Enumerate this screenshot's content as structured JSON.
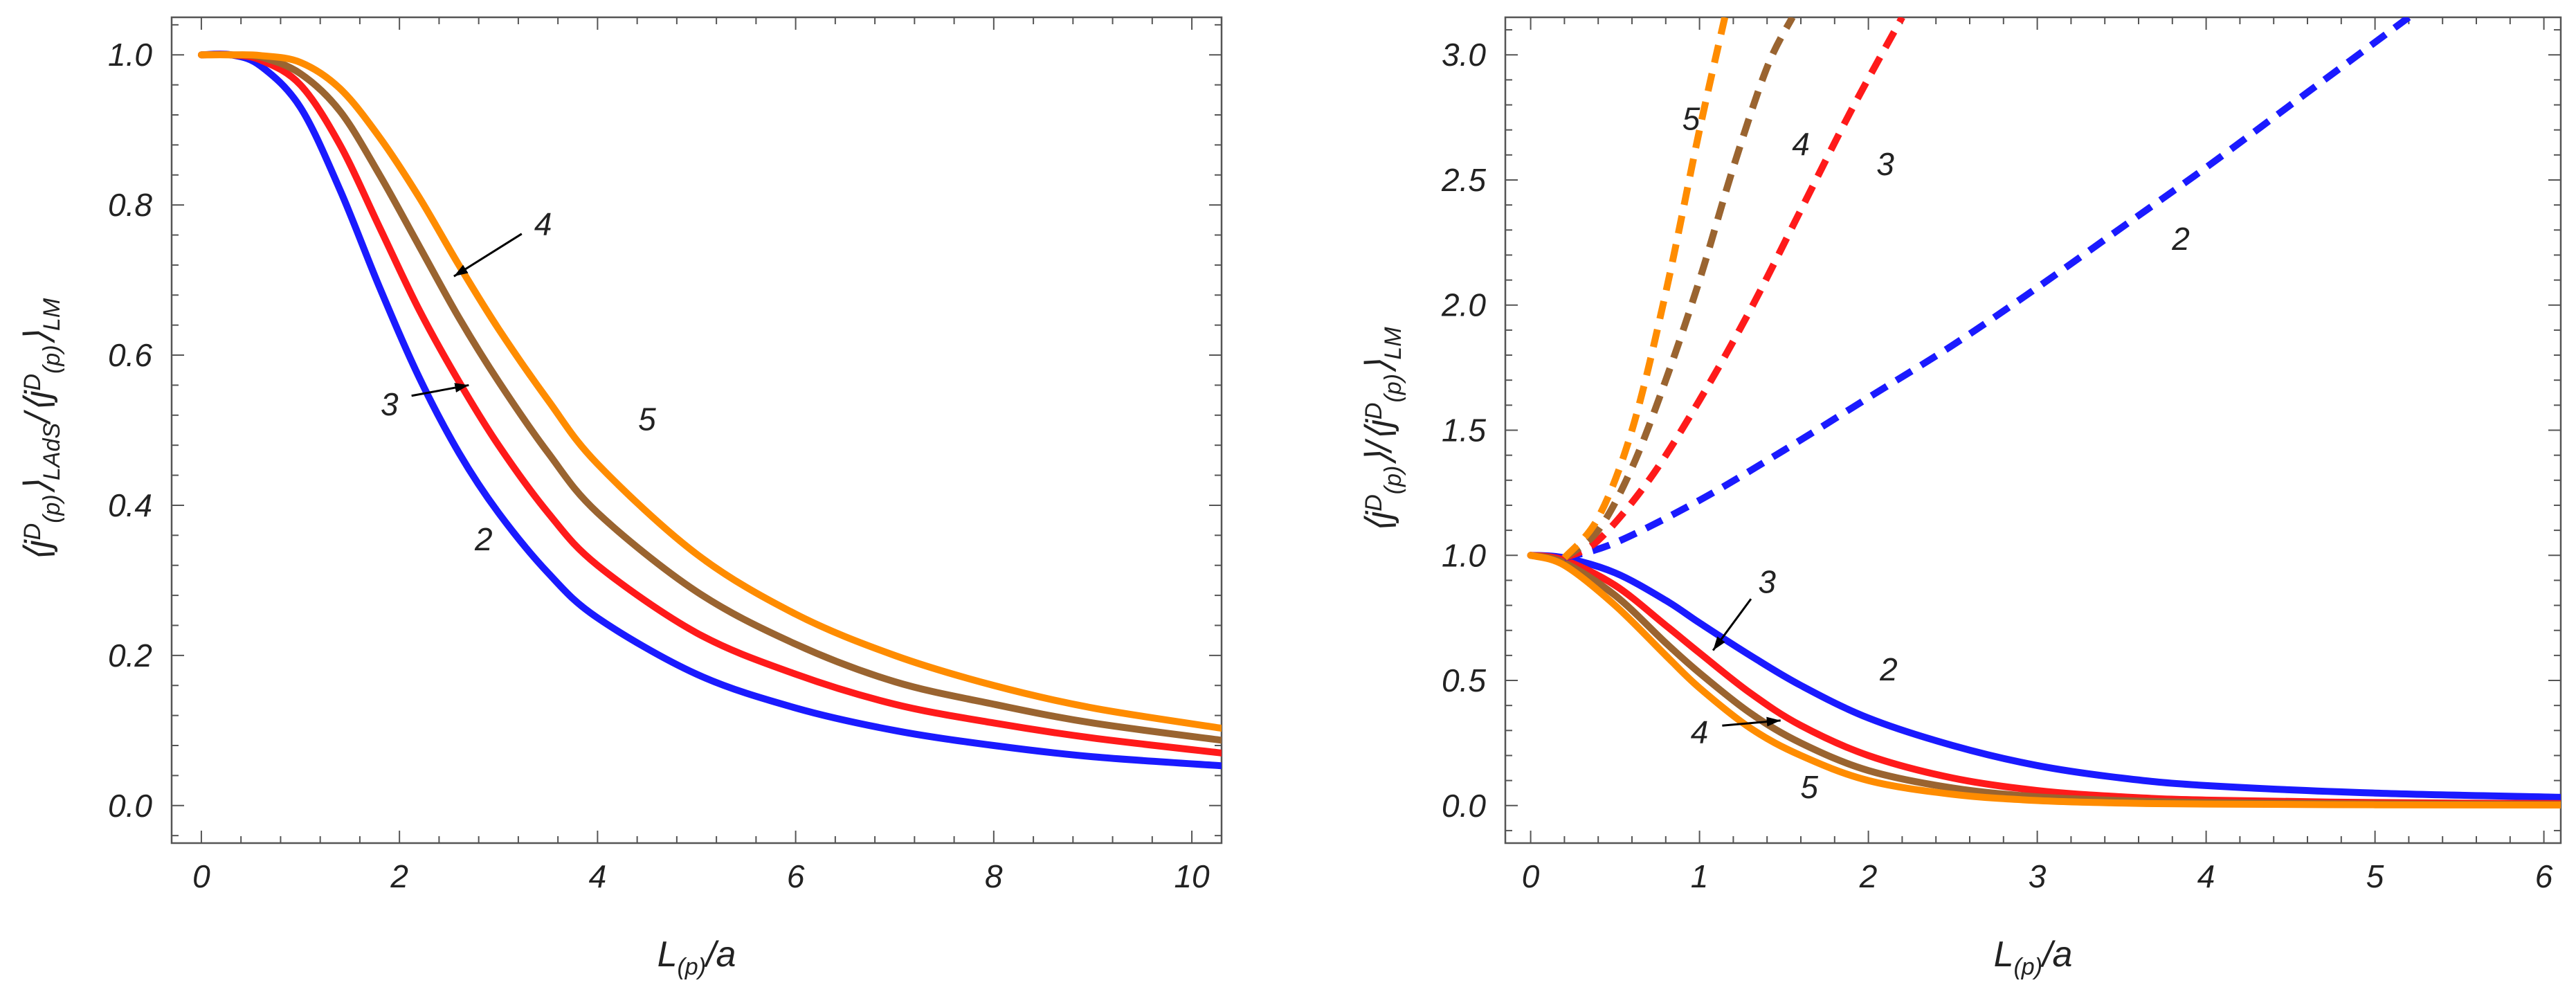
{
  "colors": {
    "n2": "#1a1aff",
    "n3": "#ff1a1a",
    "n4": "#9a6430",
    "n5": "#ff8c00",
    "frame": "#555555"
  },
  "chart_data": [
    {
      "type": "line",
      "title": "",
      "xlabel": "L_(p)/a",
      "ylabel": "⟨j^D_(p)⟩_LAdS/⟨j^D_(p)⟩_LM",
      "xlim": [
        -0.3,
        10.3
      ],
      "ylim": [
        -0.05,
        1.05
      ],
      "xticks": [
        0,
        2,
        4,
        6,
        8,
        10
      ],
      "xtick_labels": [
        "0",
        "2",
        "4",
        "6",
        "8",
        "10"
      ],
      "yticks": [
        0.0,
        0.2,
        0.4,
        0.6,
        0.8,
        1.0
      ],
      "ytick_labels": [
        "0.0",
        "0.2",
        "0.4",
        "0.6",
        "0.8",
        "1.0"
      ],
      "series": [
        {
          "name": "2",
          "color_key": "n2",
          "dashed": false,
          "x": [
            0,
            0.3,
            0.6,
            1.0,
            1.4,
            1.8,
            2.2,
            2.6,
            3.0,
            3.5,
            4.0,
            5.0,
            6.0,
            7.0,
            8.0,
            9.0,
            10.3
          ],
          "y": [
            1.0,
            1.0,
            0.985,
            0.93,
            0.82,
            0.69,
            0.57,
            0.47,
            0.39,
            0.31,
            0.25,
            0.175,
            0.13,
            0.1,
            0.08,
            0.065,
            0.053
          ]
        },
        {
          "name": "3",
          "color_key": "n3",
          "dashed": false,
          "x": [
            0,
            0.3,
            0.6,
            1.0,
            1.4,
            1.8,
            2.2,
            2.6,
            3.0,
            3.5,
            4.0,
            5.0,
            6.0,
            7.0,
            8.0,
            9.0,
            10.3
          ],
          "y": [
            1.0,
            1.0,
            0.993,
            0.96,
            0.88,
            0.77,
            0.66,
            0.565,
            0.48,
            0.39,
            0.32,
            0.23,
            0.175,
            0.135,
            0.11,
            0.09,
            0.07
          ]
        },
        {
          "name": "4",
          "color_key": "n4",
          "dashed": false,
          "x": [
            0,
            0.3,
            0.6,
            1.0,
            1.4,
            1.8,
            2.2,
            2.6,
            3.0,
            3.5,
            4.0,
            5.0,
            6.0,
            7.0,
            8.0,
            9.0,
            10.3
          ],
          "y": [
            1.0,
            1.0,
            0.997,
            0.975,
            0.925,
            0.84,
            0.745,
            0.65,
            0.565,
            0.47,
            0.39,
            0.285,
            0.215,
            0.165,
            0.135,
            0.11,
            0.087
          ]
        },
        {
          "name": "5",
          "color_key": "n5",
          "dashed": false,
          "x": [
            0,
            0.3,
            0.6,
            1.0,
            1.4,
            1.8,
            2.2,
            2.6,
            3.0,
            3.5,
            4.0,
            5.0,
            6.0,
            7.0,
            8.0,
            9.0,
            10.3
          ],
          "y": [
            1.0,
            1.0,
            0.999,
            0.99,
            0.955,
            0.89,
            0.81,
            0.72,
            0.635,
            0.54,
            0.455,
            0.335,
            0.255,
            0.2,
            0.16,
            0.13,
            0.103
          ]
        }
      ],
      "annotations": [
        {
          "text": "2",
          "x": 2.85,
          "y": 0.34
        },
        {
          "text": "3",
          "x": 1.9,
          "y": 0.52,
          "arrow_to": [
            2.7,
            0.56
          ]
        },
        {
          "text": "4",
          "x": 3.45,
          "y": 0.76,
          "arrow_to": [
            2.55,
            0.705
          ]
        },
        {
          "text": "5",
          "x": 4.5,
          "y": 0.5
        }
      ]
    },
    {
      "type": "line",
      "title": "",
      "xlabel": "L_(p)/a",
      "ylabel": "⟨j^D_(p)⟩/⟨j^D_(p)⟩_LM",
      "xlim": [
        -0.15,
        6.1
      ],
      "ylim": [
        -0.15,
        3.15
      ],
      "xticks": [
        0,
        1,
        2,
        3,
        4,
        5,
        6
      ],
      "xtick_labels": [
        "0",
        "1",
        "2",
        "3",
        "4",
        "5",
        "6"
      ],
      "yticks": [
        0.0,
        0.5,
        1.0,
        1.5,
        2.0,
        2.5,
        3.0
      ],
      "ytick_labels": [
        "0.0",
        "0.5",
        "1.0",
        "1.5",
        "2.0",
        "2.5",
        "3.0"
      ],
      "series": [
        {
          "name": "2",
          "color_key": "n2",
          "dashed": false,
          "x": [
            0,
            0.2,
            0.5,
            0.8,
            1.0,
            1.3,
            1.6,
            2.0,
            2.5,
            3.0,
            3.5,
            4.0,
            5.0,
            6.1
          ],
          "y": [
            1.0,
            0.99,
            0.93,
            0.82,
            0.73,
            0.6,
            0.48,
            0.35,
            0.24,
            0.16,
            0.11,
            0.08,
            0.05,
            0.033
          ]
        },
        {
          "name": "3",
          "color_key": "n3",
          "dashed": false,
          "x": [
            0,
            0.2,
            0.5,
            0.8,
            1.0,
            1.3,
            1.6,
            2.0,
            2.5,
            3.0,
            3.5,
            4.0,
            5.0,
            6.1
          ],
          "y": [
            1.0,
            0.98,
            0.88,
            0.72,
            0.61,
            0.45,
            0.32,
            0.2,
            0.11,
            0.06,
            0.035,
            0.022,
            0.012,
            0.008
          ]
        },
        {
          "name": "4",
          "color_key": "n4",
          "dashed": false,
          "x": [
            0,
            0.2,
            0.5,
            0.8,
            1.0,
            1.3,
            1.6,
            2.0,
            2.5,
            3.0,
            3.5,
            4.0,
            5.0,
            6.1
          ],
          "y": [
            1.0,
            0.97,
            0.84,
            0.65,
            0.53,
            0.37,
            0.25,
            0.14,
            0.07,
            0.035,
            0.02,
            0.012,
            0.006,
            0.004
          ]
        },
        {
          "name": "5",
          "color_key": "n5",
          "dashed": false,
          "x": [
            0,
            0.2,
            0.5,
            0.8,
            1.0,
            1.3,
            1.6,
            2.0,
            2.5,
            3.0,
            3.5,
            4.0,
            5.0,
            6.1
          ],
          "y": [
            1.0,
            0.96,
            0.8,
            0.6,
            0.47,
            0.31,
            0.2,
            0.1,
            0.045,
            0.02,
            0.01,
            0.006,
            0.003,
            0.002
          ]
        },
        {
          "name": "2",
          "color_key": "n2",
          "dashed": true,
          "x": [
            0.2,
            0.5,
            1.0,
            1.5,
            2.0,
            2.5,
            3.0,
            3.5,
            4.0,
            4.5,
            5.0,
            5.2
          ],
          "y": [
            0.99,
            1.05,
            1.22,
            1.42,
            1.63,
            1.84,
            2.07,
            2.31,
            2.55,
            2.8,
            3.05,
            3.15
          ]
        },
        {
          "name": "3",
          "color_key": "n3",
          "dashed": true,
          "x": [
            0.2,
            0.4,
            0.7,
            1.0,
            1.3,
            1.6,
            1.9,
            2.2
          ],
          "y": [
            0.99,
            1.06,
            1.3,
            1.62,
            1.98,
            2.38,
            2.78,
            3.15
          ]
        },
        {
          "name": "4",
          "color_key": "n4",
          "dashed": true,
          "x": [
            0.2,
            0.4,
            0.6,
            0.8,
            1.0,
            1.2,
            1.4,
            1.55
          ],
          "y": [
            0.99,
            1.1,
            1.35,
            1.7,
            2.1,
            2.55,
            2.95,
            3.15
          ]
        },
        {
          "name": "5",
          "color_key": "n5",
          "dashed": true,
          "x": [
            0.2,
            0.4,
            0.6,
            0.8,
            1.0,
            1.15
          ],
          "y": [
            0.99,
            1.15,
            1.5,
            2.05,
            2.7,
            3.15
          ]
        }
      ],
      "annotations": [
        {
          "text": "2",
          "x": 3.85,
          "y": 2.22
        },
        {
          "text": "3",
          "x": 2.1,
          "y": 2.52
        },
        {
          "text": "4",
          "x": 1.6,
          "y": 2.6
        },
        {
          "text": "5",
          "x": 0.95,
          "y": 2.7
        },
        {
          "text": "3",
          "x": 1.4,
          "y": 0.85,
          "arrow_to": [
            1.08,
            0.62
          ]
        },
        {
          "text": "2",
          "x": 2.12,
          "y": 0.5
        },
        {
          "text": "4",
          "x": 1.0,
          "y": 0.25,
          "arrow_to": [
            1.48,
            0.34
          ]
        },
        {
          "text": "5",
          "x": 1.65,
          "y": 0.03
        }
      ]
    }
  ]
}
